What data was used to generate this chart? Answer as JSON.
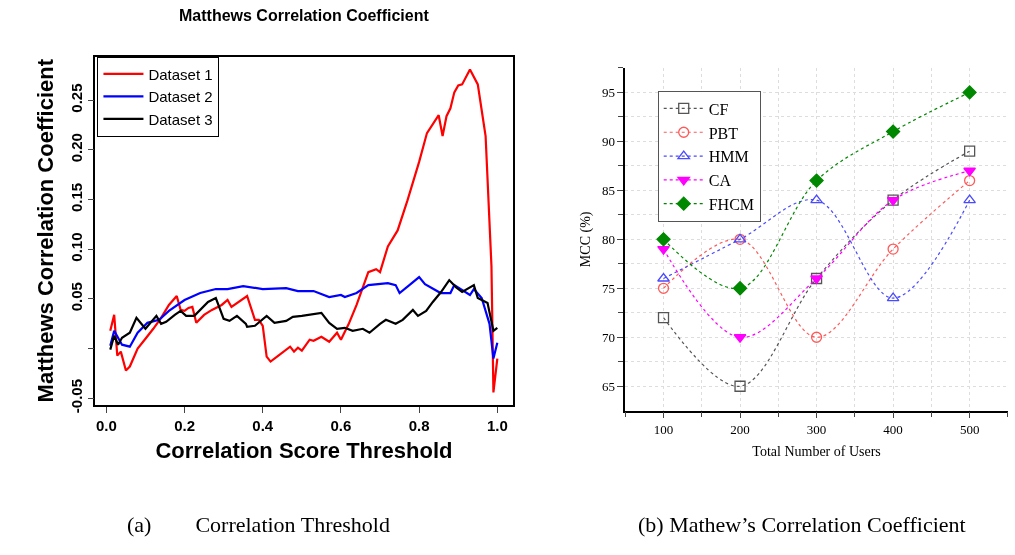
{
  "chart_data": [
    {
      "type": "line",
      "title": "Matthews Correlation Coefficient",
      "xlabel": "Correlation Score Threshold",
      "ylabel": "Matthews Correlation Coefficient",
      "xlim": [
        -0.028,
        1.039
      ],
      "ylim": [
        -0.0565,
        0.294
      ],
      "xticks": [
        {
          "value": 0,
          "label": "0.0"
        },
        {
          "value": 0.2,
          "label": "0.2"
        },
        {
          "value": 0.4,
          "label": "0.4"
        },
        {
          "value": 0.6,
          "label": "0.6"
        },
        {
          "value": 0.8,
          "label": "0.8"
        },
        {
          "value": 1,
          "label": "1.0"
        }
      ],
      "yticks": [
        {
          "value": -0.05,
          "label": "-0.05"
        },
        {
          "value": 0,
          "label": null
        },
        {
          "value": 0.05,
          "label": "0.05"
        },
        {
          "value": 0.1,
          "label": "0.10"
        },
        {
          "value": 0.15,
          "label": "0.15"
        },
        {
          "value": 0.2,
          "label": "0.20"
        },
        {
          "value": 0.25,
          "label": "0.25"
        }
      ],
      "legend": "top left",
      "grid": false,
      "line_style": "solid",
      "annotations": [
        "(a)        Correlation Threshold"
      ],
      "series": [
        {
          "name": "Dataset 1",
          "color": "#ff0000",
          "x": [
            0.01,
            0.02,
            0.028,
            0.037,
            0.05,
            0.06,
            0.08,
            0.1,
            0.12,
            0.14,
            0.16,
            0.18,
            0.19,
            0.2,
            0.21,
            0.22,
            0.23,
            0.25,
            0.27,
            0.295,
            0.31,
            0.32,
            0.36,
            0.38,
            0.39,
            0.4,
            0.41,
            0.42,
            0.44,
            0.47,
            0.48,
            0.49,
            0.5,
            0.52,
            0.53,
            0.55,
            0.57,
            0.59,
            0.6,
            0.62,
            0.64,
            0.67,
            0.69,
            0.7,
            0.72,
            0.745,
            0.77,
            0.8,
            0.82,
            0.85,
            0.86,
            0.87,
            0.88,
            0.89,
            0.9,
            0.91,
            0.93,
            0.95,
            0.96,
            0.97,
            0.985,
            0.99,
            1.0
          ],
          "values": [
            0.018,
            0.034,
            -0.007,
            -0.003,
            -0.022,
            -0.018,
            0.0,
            0.01,
            0.02,
            0.031,
            0.044,
            0.053,
            0.039,
            0.038,
            0.041,
            0.042,
            0.026,
            0.034,
            0.039,
            0.044,
            0.049,
            0.042,
            0.053,
            0.029,
            0.029,
            0.023,
            -0.008,
            -0.013,
            -0.007,
            0.002,
            -0.003,
            0.001,
            -0.002,
            0.009,
            0.008,
            0.012,
            0.007,
            0.016,
            0.009,
            0.025,
            0.044,
            0.077,
            0.08,
            0.077,
            0.103,
            0.119,
            0.149,
            0.188,
            0.217,
            0.235,
            0.214,
            0.234,
            0.242,
            0.258,
            0.265,
            0.266,
            0.281,
            0.266,
            0.24,
            0.214,
            0.083,
            -0.044,
            -0.01
          ]
        },
        {
          "name": "Dataset 2",
          "color": "#0000ff",
          "x": [
            0.01,
            0.02,
            0.04,
            0.06,
            0.08,
            0.105,
            0.135,
            0.16,
            0.2,
            0.24,
            0.28,
            0.31,
            0.35,
            0.4,
            0.46,
            0.49,
            0.53,
            0.57,
            0.6,
            0.61,
            0.64,
            0.67,
            0.72,
            0.74,
            0.75,
            0.775,
            0.8,
            0.815,
            0.855,
            0.88,
            0.89,
            0.93,
            0.94,
            0.96,
            0.98,
            0.99,
            1.0
          ],
          "values": [
            0.003,
            0.018,
            0.004,
            0.002,
            0.016,
            0.026,
            0.029,
            0.038,
            0.049,
            0.056,
            0.06,
            0.06,
            0.063,
            0.06,
            0.061,
            0.058,
            0.058,
            0.052,
            0.054,
            0.052,
            0.056,
            0.064,
            0.066,
            0.064,
            0.056,
            0.064,
            0.072,
            0.065,
            0.056,
            0.056,
            0.064,
            0.054,
            0.06,
            0.051,
            0.025,
            -0.01,
            0.006
          ]
        },
        {
          "name": "Dataset 3",
          "color": "#000000",
          "x": [
            0.01,
            0.02,
            0.03,
            0.04,
            0.06,
            0.077,
            0.1,
            0.128,
            0.14,
            0.153,
            0.175,
            0.19,
            0.204,
            0.225,
            0.26,
            0.28,
            0.3,
            0.315,
            0.334,
            0.357,
            0.36,
            0.38,
            0.41,
            0.43,
            0.46,
            0.477,
            0.5,
            0.55,
            0.57,
            0.59,
            0.61,
            0.63,
            0.656,
            0.673,
            0.7,
            0.715,
            0.74,
            0.758,
            0.784,
            0.797,
            0.818,
            0.835,
            0.856,
            0.877,
            0.894,
            0.91,
            0.94,
            0.95,
            0.975,
            0.99,
            1.0
          ],
          "values": [
            -0.001,
            0.013,
            0.004,
            0.011,
            0.016,
            0.031,
            0.02,
            0.033,
            0.025,
            0.027,
            0.034,
            0.038,
            0.033,
            0.033,
            0.047,
            0.051,
            0.03,
            0.028,
            0.033,
            0.025,
            0.022,
            0.023,
            0.033,
            0.026,
            0.028,
            0.032,
            0.033,
            0.036,
            0.026,
            0.02,
            0.021,
            0.018,
            0.02,
            0.016,
            0.025,
            0.029,
            0.025,
            0.029,
            0.039,
            0.033,
            0.038,
            0.047,
            0.057,
            0.069,
            0.062,
            0.057,
            0.064,
            0.051,
            0.046,
            0.018,
            0.021
          ]
        }
      ]
    },
    {
      "type": "line",
      "xlabel": "Total Number of Users",
      "ylabel": "MCC (%)",
      "x": [
        100,
        200,
        300,
        400,
        500
      ],
      "xlim": [
        50,
        550
      ],
      "ylim": [
        62.5,
        97.5
      ],
      "xticks": [
        100,
        200,
        300,
        400,
        500
      ],
      "yticks": [
        65,
        70,
        75,
        80,
        85,
        90,
        95
      ],
      "legend": "top left",
      "grid": true,
      "line_style": "dotted",
      "annotations": [
        "(b) Mathew’s Correlation Coefficient"
      ],
      "series": [
        {
          "name": "CF",
          "color": "#555555",
          "marker": "square",
          "values": [
            72,
            65,
            76,
            84,
            89
          ]
        },
        {
          "name": "PBT",
          "color": "#ff5a5a",
          "marker": "circle",
          "values": [
            75,
            80,
            70,
            79,
            86
          ]
        },
        {
          "name": "HMM",
          "color": "#4a4aff",
          "marker": "triangle",
          "values": [
            76,
            80,
            84,
            74,
            84
          ]
        },
        {
          "name": "CA",
          "color": "#ff00ff",
          "marker": "triangle-down",
          "values": [
            79,
            70,
            76,
            84,
            87
          ]
        },
        {
          "name": "FHCM",
          "color": "#008800",
          "marker": "diamond",
          "values": [
            80,
            75,
            86,
            91,
            95
          ]
        }
      ]
    }
  ]
}
